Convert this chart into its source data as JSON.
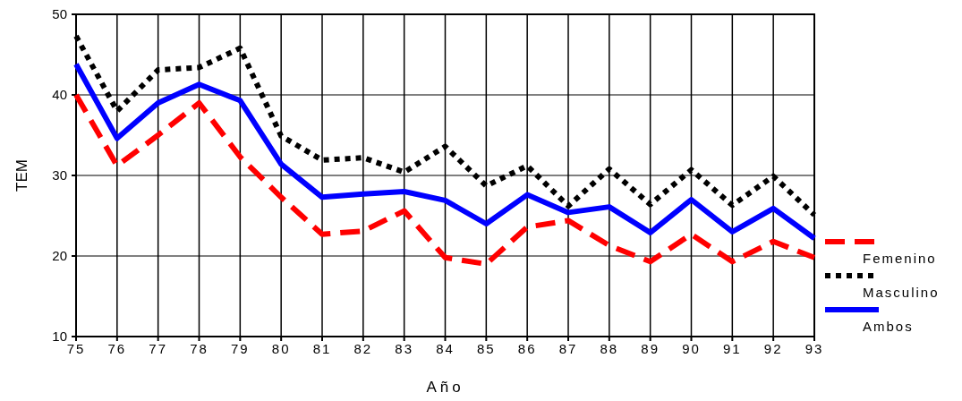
{
  "chart_data": {
    "type": "line",
    "xlabel": "Año",
    "ylabel": "TEM",
    "x": [
      75,
      76,
      77,
      78,
      79,
      80,
      81,
      82,
      83,
      84,
      85,
      86,
      87,
      88,
      89,
      90,
      91,
      92,
      93
    ],
    "xlim": [
      75,
      93
    ],
    "xticks": [
      75,
      76,
      77,
      78,
      79,
      80,
      81,
      82,
      83,
      84,
      85,
      86,
      87,
      88,
      89,
      90,
      91,
      92,
      93
    ],
    "ylim": [
      10,
      50
    ],
    "yticks": [
      10,
      20,
      30,
      40,
      50
    ],
    "grid": true,
    "legend": "right",
    "series": [
      {
        "name": "Femenino",
        "color": "#ff0000",
        "line_style": "dashed",
        "values": [
          40,
          31.2,
          35,
          39,
          32.3,
          27.3,
          22.7,
          23.1,
          25.6,
          19.8,
          19,
          23.6,
          24.4,
          21.3,
          19.3,
          22.7,
          19.3,
          21.8,
          19.8
        ]
      },
      {
        "name": "Masculino",
        "color": "#000000",
        "line_style": "dotted",
        "values": [
          47.3,
          38,
          43.1,
          43.4,
          45.8,
          34.9,
          31.9,
          32.2,
          30.4,
          33.6,
          28.7,
          31.2,
          26.2,
          30.8,
          26.4,
          30.7,
          26.3,
          29.9,
          25.1
        ]
      },
      {
        "name": "Ambos",
        "color": "#0000ff",
        "line_style": "solid",
        "values": [
          43.8,
          34.6,
          39,
          41.3,
          39.3,
          31.4,
          27.3,
          27.7,
          28,
          26.9,
          24,
          27.6,
          25.4,
          26.1,
          22.9,
          27,
          23,
          25.9,
          22.2
        ]
      }
    ]
  }
}
